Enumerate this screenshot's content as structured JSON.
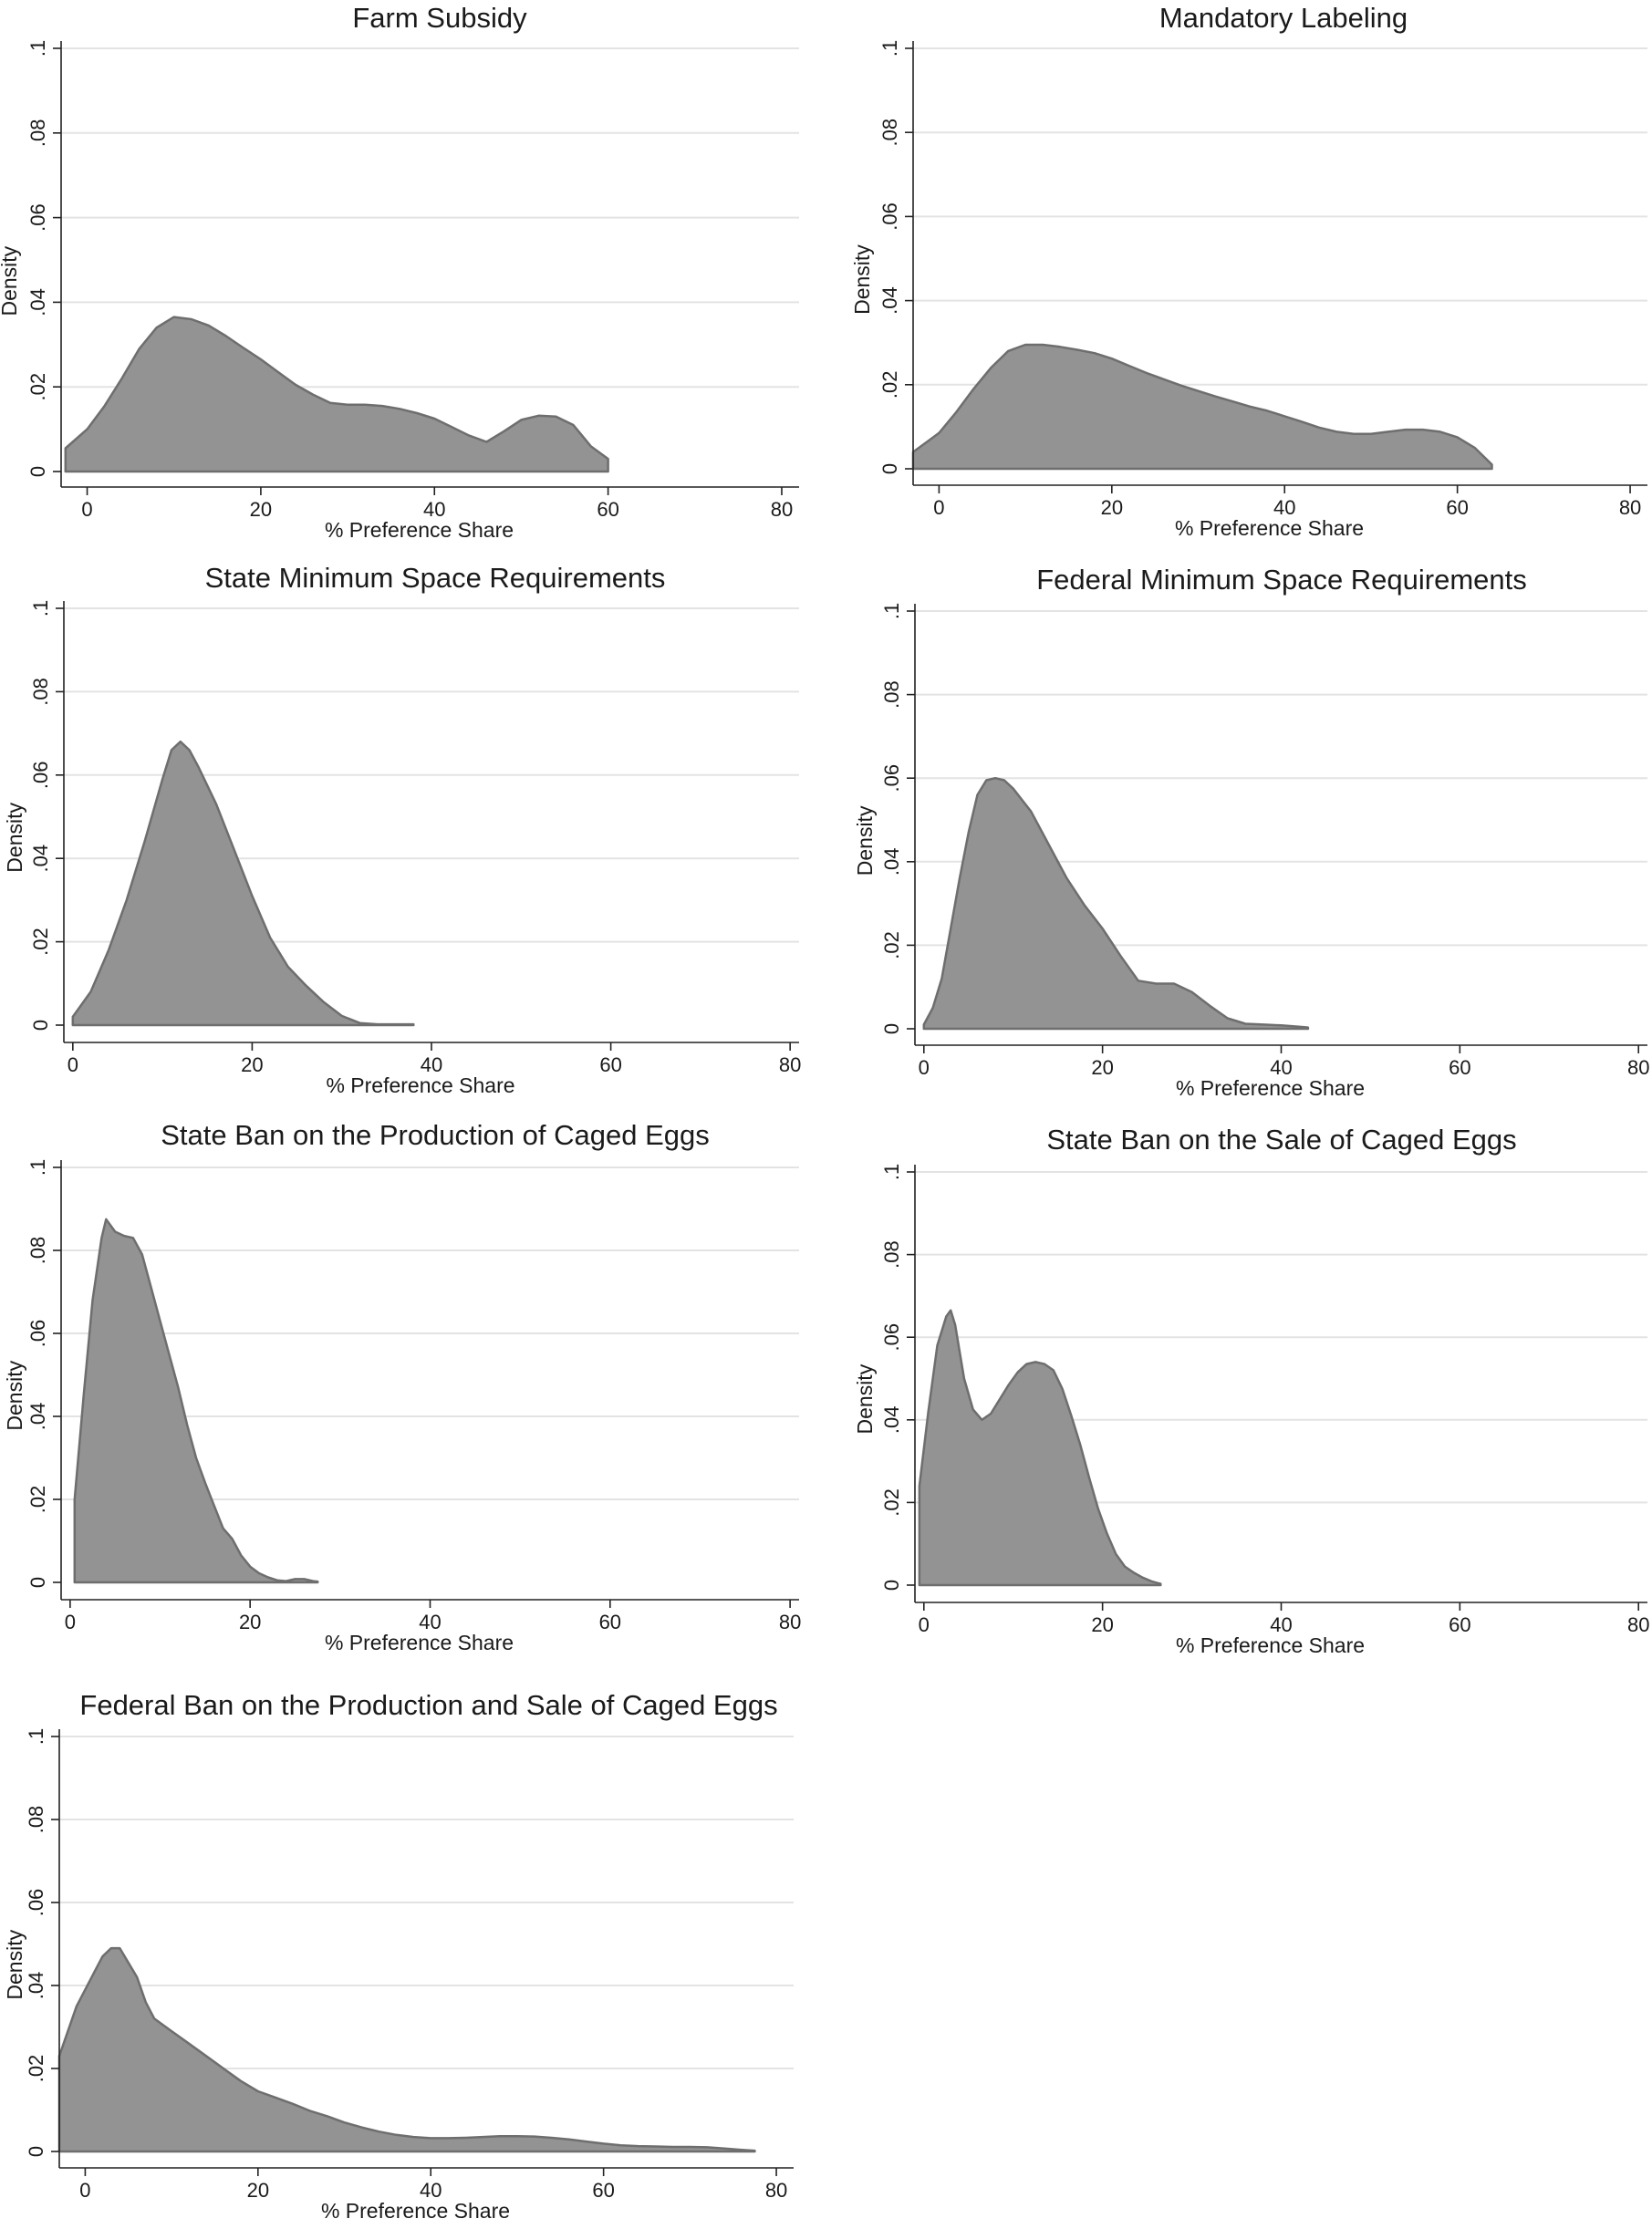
{
  "chart_data": [
    {
      "type": "area",
      "title": "Farm Subsidy",
      "xlabel": "% Preference Share",
      "ylabel": "Density",
      "xlim": [
        -3,
        82
      ],
      "ylim": [
        0,
        0.1
      ],
      "x_ticks": [
        0,
        20,
        40,
        60,
        80
      ],
      "x_tick_labels": [
        "0",
        "20",
        "40",
        "60",
        "80"
      ],
      "y_ticks": [
        0,
        0.02,
        0.04,
        0.06,
        0.08,
        0.1
      ],
      "y_tick_labels": [
        "0",
        ".02",
        ".04",
        ".06",
        ".08",
        ".1"
      ],
      "grid": true,
      "series": [
        {
          "x": [
            -2.5,
            0,
            2,
            4,
            6,
            8,
            10,
            12,
            14,
            16,
            18,
            20,
            22,
            24,
            26,
            28,
            30,
            32,
            34,
            36,
            38,
            40,
            42,
            44,
            46,
            48,
            50,
            52,
            54,
            56,
            58,
            60
          ],
          "y": [
            0.0055,
            0.01,
            0.0155,
            0.022,
            0.029,
            0.034,
            0.0365,
            0.036,
            0.0345,
            0.032,
            0.0292,
            0.0265,
            0.0235,
            0.0205,
            0.0182,
            0.0162,
            0.0158,
            0.0158,
            0.0155,
            0.0148,
            0.0138,
            0.0125,
            0.0105,
            0.0085,
            0.007,
            0.0095,
            0.0122,
            0.0132,
            0.013,
            0.011,
            0.006,
            0.003
          ]
        }
      ]
    },
    {
      "type": "area",
      "title": "Mandatory Labeling",
      "xlabel": "% Preference Share",
      "ylabel": "Density",
      "xlim": [
        -3,
        82
      ],
      "ylim": [
        0,
        0.1
      ],
      "x_ticks": [
        0,
        20,
        40,
        60,
        80
      ],
      "x_tick_labels": [
        "0",
        "20",
        "40",
        "60",
        "80"
      ],
      "y_ticks": [
        0,
        0.02,
        0.04,
        0.06,
        0.08,
        0.1
      ],
      "y_tick_labels": [
        "0",
        ".02",
        ".04",
        ".06",
        ".08",
        ".1"
      ],
      "grid": true,
      "series": [
        {
          "x": [
            -3,
            0,
            2,
            4,
            6,
            8,
            10,
            12,
            14,
            16,
            18,
            20,
            22,
            24,
            26,
            28,
            30,
            32,
            34,
            36,
            38,
            40,
            42,
            44,
            46,
            48,
            50,
            52,
            54,
            56,
            58,
            60,
            62,
            64
          ],
          "y": [
            0.004,
            0.0085,
            0.0135,
            0.019,
            0.024,
            0.028,
            0.0295,
            0.0295,
            0.029,
            0.0283,
            0.0275,
            0.0262,
            0.0245,
            0.0228,
            0.0213,
            0.0198,
            0.0185,
            0.0172,
            0.016,
            0.0148,
            0.0138,
            0.0125,
            0.0112,
            0.0098,
            0.0088,
            0.0083,
            0.0083,
            0.0088,
            0.0093,
            0.0093,
            0.0088,
            0.0075,
            0.005,
            0.001
          ]
        }
      ]
    },
    {
      "type": "area",
      "title": "State Minimum Space Requirements",
      "xlabel": "% Preference Share",
      "ylabel": "Density",
      "xlim": [
        -1,
        81
      ],
      "ylim": [
        0,
        0.1
      ],
      "x_ticks": [
        0,
        20,
        40,
        60,
        80
      ],
      "x_tick_labels": [
        "0",
        "20",
        "40",
        "60",
        "80"
      ],
      "y_ticks": [
        0,
        0.02,
        0.04,
        0.06,
        0.08,
        0.1
      ],
      "y_tick_labels": [
        "0",
        ".02",
        ".04",
        ".06",
        ".08",
        ".1"
      ],
      "grid": true,
      "series": [
        {
          "x": [
            0,
            2,
            4,
            6,
            8,
            10,
            11,
            12,
            13,
            14,
            16,
            18,
            20,
            22,
            24,
            26,
            28,
            30,
            32,
            34,
            36,
            38
          ],
          "y": [
            0.002,
            0.008,
            0.018,
            0.03,
            0.044,
            0.059,
            0.066,
            0.068,
            0.066,
            0.062,
            0.053,
            0.042,
            0.031,
            0.021,
            0.014,
            0.0095,
            0.0055,
            0.0022,
            0.0005,
            0.0002,
            0.0002,
            0.0002
          ]
        }
      ]
    },
    {
      "type": "area",
      "title": "Federal Minimum Space Requirements",
      "xlabel": "% Preference Share",
      "ylabel": "Density",
      "xlim": [
        -1,
        81
      ],
      "ylim": [
        0,
        0.1
      ],
      "x_ticks": [
        0,
        20,
        40,
        60,
        80
      ],
      "x_tick_labels": [
        "0",
        "20",
        "40",
        "60",
        "80"
      ],
      "y_ticks": [
        0,
        0.02,
        0.04,
        0.06,
        0.08,
        0.1
      ],
      "y_tick_labels": [
        "0",
        ".02",
        ".04",
        ".06",
        ".08",
        ".1"
      ],
      "grid": true,
      "series": [
        {
          "x": [
            0,
            1,
            2,
            3,
            4,
            5,
            6,
            7,
            8,
            9,
            10,
            12,
            14,
            16,
            18,
            20,
            22,
            24,
            26,
            28,
            30,
            32,
            34,
            36,
            38,
            40,
            42,
            43
          ],
          "y": [
            0.001,
            0.005,
            0.012,
            0.024,
            0.036,
            0.047,
            0.056,
            0.0595,
            0.06,
            0.0595,
            0.0575,
            0.052,
            0.044,
            0.036,
            0.0295,
            0.024,
            0.0175,
            0.0115,
            0.0108,
            0.0108,
            0.0088,
            0.0055,
            0.0025,
            0.0012,
            0.001,
            0.0008,
            0.0005,
            0.0003
          ]
        }
      ]
    },
    {
      "type": "area",
      "title": "State Ban on the Production of Caged Eggs",
      "xlabel": "% Preference Share",
      "ylabel": "Density",
      "xlim": [
        -1,
        81
      ],
      "ylim": [
        0,
        0.1
      ],
      "x_ticks": [
        0,
        20,
        40,
        60,
        80
      ],
      "x_tick_labels": [
        "0",
        "20",
        "40",
        "60",
        "80"
      ],
      "y_ticks": [
        0,
        0.02,
        0.04,
        0.06,
        0.08,
        0.1
      ],
      "y_tick_labels": [
        "0",
        ".02",
        ".04",
        ".06",
        ".08",
        ".1"
      ],
      "grid": true,
      "series": [
        {
          "x": [
            0.5,
            1.5,
            2.5,
            3.5,
            4,
            5,
            6,
            7,
            8,
            9,
            10,
            11,
            12,
            13,
            14,
            15,
            16,
            17,
            18,
            19,
            20,
            21,
            22,
            23,
            24,
            25,
            26,
            27,
            27.5
          ],
          "y": [
            0.02,
            0.045,
            0.068,
            0.083,
            0.0875,
            0.0845,
            0.0835,
            0.083,
            0.079,
            0.071,
            0.063,
            0.055,
            0.047,
            0.038,
            0.03,
            0.024,
            0.0185,
            0.013,
            0.0105,
            0.0065,
            0.0038,
            0.0022,
            0.0012,
            0.0005,
            0.0003,
            0.0008,
            0.0008,
            0.0003,
            0.0002
          ]
        }
      ]
    },
    {
      "type": "area",
      "title": "State Ban on the Sale of Caged Eggs",
      "xlabel": "% Preference Share",
      "ylabel": "Density",
      "xlim": [
        -1,
        81
      ],
      "ylim": [
        0,
        0.1
      ],
      "x_ticks": [
        0,
        20,
        40,
        60,
        80
      ],
      "x_tick_labels": [
        "0",
        "20",
        "40",
        "60",
        "80"
      ],
      "y_ticks": [
        0,
        0.02,
        0.04,
        0.06,
        0.08,
        0.1
      ],
      "y_tick_labels": [
        "0",
        ".02",
        ".04",
        ".06",
        ".08",
        ".1"
      ],
      "grid": true,
      "series": [
        {
          "x": [
            -0.5,
            0.5,
            1.5,
            2.5,
            3,
            3.5,
            4.5,
            5.5,
            6.5,
            7.5,
            8.5,
            9.5,
            10.5,
            11.5,
            12.5,
            13.5,
            14.5,
            15.5,
            16.5,
            17.5,
            18.5,
            19.5,
            20.5,
            21.5,
            22.5,
            23.5,
            24.5,
            25.5,
            26.5
          ],
          "y": [
            0.024,
            0.042,
            0.058,
            0.065,
            0.0665,
            0.063,
            0.05,
            0.0425,
            0.04,
            0.0415,
            0.045,
            0.0485,
            0.0515,
            0.0535,
            0.054,
            0.0535,
            0.052,
            0.0475,
            0.041,
            0.034,
            0.026,
            0.0185,
            0.0125,
            0.0075,
            0.0045,
            0.003,
            0.0018,
            0.0009,
            0.0003
          ]
        }
      ]
    },
    {
      "type": "area",
      "title": "Federal Ban on the Production and Sale of Caged Eggs",
      "xlabel": "% Preference Share",
      "ylabel": "Density",
      "xlim": [
        -3,
        82
      ],
      "ylim": [
        0,
        0.1
      ],
      "x_ticks": [
        0,
        20,
        40,
        60,
        80
      ],
      "x_tick_labels": [
        "0",
        "20",
        "40",
        "60",
        "80"
      ],
      "y_ticks": [
        0,
        0.02,
        0.04,
        0.06,
        0.08,
        0.1
      ],
      "y_tick_labels": [
        "0",
        ".02",
        ".04",
        ".06",
        ".08",
        ".1"
      ],
      "grid": true,
      "series": [
        {
          "x": [
            -3,
            -1,
            1,
            2,
            3,
            4,
            6,
            7,
            8,
            10,
            12,
            14,
            16,
            18,
            20,
            22,
            24,
            26,
            28,
            30,
            32,
            34,
            36,
            38,
            40,
            42,
            44,
            46,
            48,
            50,
            52,
            54,
            56,
            58,
            60,
            62,
            64,
            66,
            68,
            70,
            72,
            74,
            76,
            77.5
          ],
          "y": [
            0.023,
            0.035,
            0.043,
            0.047,
            0.049,
            0.049,
            0.042,
            0.036,
            0.032,
            0.029,
            0.026,
            0.023,
            0.02,
            0.017,
            0.0145,
            0.013,
            0.0115,
            0.0098,
            0.0085,
            0.007,
            0.0058,
            0.0048,
            0.004,
            0.0035,
            0.0032,
            0.0032,
            0.0033,
            0.0035,
            0.0037,
            0.0037,
            0.0036,
            0.0033,
            0.0029,
            0.0024,
            0.0019,
            0.0015,
            0.0013,
            0.0012,
            0.0011,
            0.0011,
            0.001,
            0.0007,
            0.0004,
            0.0002
          ]
        }
      ]
    }
  ]
}
